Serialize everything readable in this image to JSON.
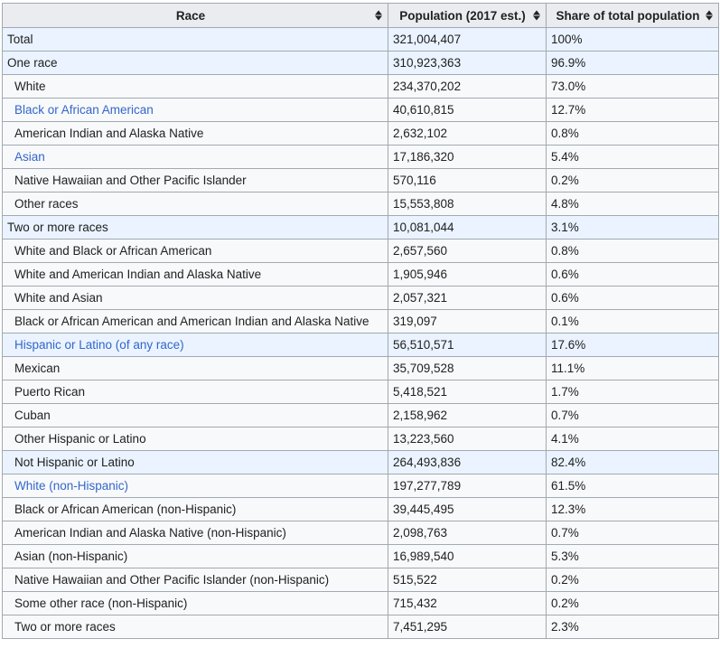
{
  "colors": {
    "header_bg": "#eaecf0",
    "row_bg": "#f8f9fa",
    "highlight_bg": "#eaf3ff",
    "link": "#3366cc",
    "border": "#a2a9b1",
    "text": "#202122"
  },
  "header": {
    "race": "Race",
    "population": "Population (2017 est.)",
    "share": "Share of total population",
    "sort_icon": "sort-icon"
  },
  "rows": [
    {
      "race": "Total",
      "population": "321,004,407",
      "share": "100%",
      "hl": true,
      "indent": false,
      "link": false
    },
    {
      "race": "One race",
      "population": "310,923,363",
      "share": "96.9%",
      "hl": true,
      "indent": false,
      "link": false
    },
    {
      "race": "White",
      "population": "234,370,202",
      "share": "73.0%",
      "hl": false,
      "indent": true,
      "link": false
    },
    {
      "race": "Black or African American",
      "population": "40,610,815",
      "share": "12.7%",
      "hl": false,
      "indent": true,
      "link": true
    },
    {
      "race": "American Indian and Alaska Native",
      "population": "2,632,102",
      "share": "0.8%",
      "hl": false,
      "indent": true,
      "link": false
    },
    {
      "race": "Asian",
      "population": "17,186,320",
      "share": "5.4%",
      "hl": false,
      "indent": true,
      "link": true
    },
    {
      "race": "Native Hawaiian and Other Pacific Islander",
      "population": "570,116",
      "share": "0.2%",
      "hl": false,
      "indent": true,
      "link": false
    },
    {
      "race": "Other races",
      "population": "15,553,808",
      "share": "4.8%",
      "hl": false,
      "indent": true,
      "link": false
    },
    {
      "race": "Two or more races",
      "population": "10,081,044",
      "share": "3.1%",
      "hl": true,
      "indent": false,
      "link": false
    },
    {
      "race": "White and Black or African American",
      "population": "2,657,560",
      "share": "0.8%",
      "hl": false,
      "indent": true,
      "link": false
    },
    {
      "race": "White and American Indian and Alaska Native",
      "population": "1,905,946",
      "share": "0.6%",
      "hl": false,
      "indent": true,
      "link": false
    },
    {
      "race": "White and Asian",
      "population": "2,057,321",
      "share": "0.6%",
      "hl": false,
      "indent": true,
      "link": false
    },
    {
      "race": "Black or African American and American Indian and Alaska Native",
      "population": "319,097",
      "share": "0.1%",
      "hl": false,
      "indent": true,
      "link": false
    },
    {
      "race": "Hispanic or Latino (of any race)",
      "population": "56,510,571",
      "share": "17.6%",
      "hl": true,
      "indent": true,
      "link": true
    },
    {
      "race": "Mexican",
      "population": "35,709,528",
      "share": "11.1%",
      "hl": false,
      "indent": true,
      "link": false
    },
    {
      "race": "Puerto Rican",
      "population": "5,418,521",
      "share": "1.7%",
      "hl": false,
      "indent": true,
      "link": false
    },
    {
      "race": "Cuban",
      "population": "2,158,962",
      "share": "0.7%",
      "hl": false,
      "indent": true,
      "link": false
    },
    {
      "race": "Other Hispanic or Latino",
      "population": "13,223,560",
      "share": "4.1%",
      "hl": false,
      "indent": true,
      "link": false
    },
    {
      "race": "Not Hispanic or Latino",
      "population": "264,493,836",
      "share": "82.4%",
      "hl": true,
      "indent": true,
      "link": false
    },
    {
      "race": "White (non-Hispanic)",
      "population": "197,277,789",
      "share": "61.5%",
      "hl": false,
      "indent": true,
      "link": true
    },
    {
      "race": "Black or African American (non-Hispanic)",
      "population": "39,445,495",
      "share": "12.3%",
      "hl": false,
      "indent": true,
      "link": false
    },
    {
      "race": "American Indian and Alaska Native (non-Hispanic)",
      "population": "2,098,763",
      "share": "0.7%",
      "hl": false,
      "indent": true,
      "link": false
    },
    {
      "race": "Asian (non-Hispanic)",
      "population": "16,989,540",
      "share": "5.3%",
      "hl": false,
      "indent": true,
      "link": false
    },
    {
      "race": "Native Hawaiian and Other Pacific Islander (non-Hispanic)",
      "population": "515,522",
      "share": "0.2%",
      "hl": false,
      "indent": true,
      "link": false
    },
    {
      "race": "Some other race (non-Hispanic)",
      "population": "715,432",
      "share": "0.2%",
      "hl": false,
      "indent": true,
      "link": false
    },
    {
      "race": "Two or more races",
      "population": "7,451,295",
      "share": "2.3%",
      "hl": false,
      "indent": true,
      "link": false
    }
  ]
}
